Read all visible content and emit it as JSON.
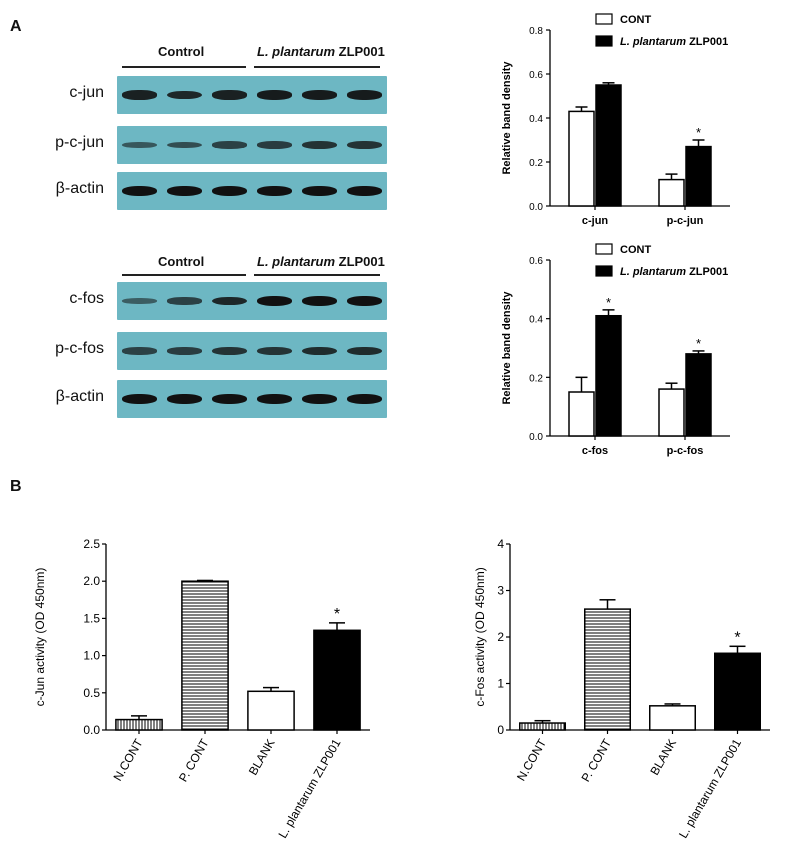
{
  "panels": {
    "a": "A",
    "b": "B"
  },
  "blot_top": {
    "control": "Control",
    "treat_italic": "L. plantarum",
    "treat_rest": " ZLP001",
    "rows": [
      {
        "label": "c-jun",
        "intensities": [
          0.85,
          0.8,
          0.85,
          0.9,
          0.9,
          0.9
        ]
      },
      {
        "label": "p-c-jun",
        "intensities": [
          0.35,
          0.45,
          0.55,
          0.6,
          0.7,
          0.7
        ]
      },
      {
        "label": "β-actin",
        "intensities": [
          1,
          1,
          1,
          1,
          1,
          1
        ]
      }
    ]
  },
  "blot_bottom": {
    "control": "Control",
    "treat_italic": "L. plantarum",
    "treat_rest": " ZLP001",
    "rows": [
      {
        "label": "c-fos",
        "intensities": [
          0.3,
          0.55,
          0.8,
          1,
          1,
          1
        ]
      },
      {
        "label": "p-c-fos",
        "intensities": [
          0.55,
          0.6,
          0.7,
          0.7,
          0.75,
          0.75
        ]
      },
      {
        "label": "β-actin",
        "intensities": [
          1,
          1,
          1,
          1,
          1,
          1
        ]
      }
    ]
  },
  "chart_data": [
    {
      "type": "bar",
      "ylabel": "Relative band density",
      "categories": [
        "c-jun",
        "p-c-jun"
      ],
      "ylim": [
        0,
        0.8
      ],
      "yticks": [
        "0.0",
        "0.2",
        "0.4",
        "0.6",
        "0.8"
      ],
      "series": [
        {
          "name": "CONT",
          "values": [
            0.43,
            0.12
          ],
          "errors": [
            0.02,
            0.025
          ],
          "fill": "#ffffff"
        },
        {
          "name": "L. plantarum ZLP001",
          "values": [
            0.55,
            0.27
          ],
          "errors": [
            0.01,
            0.03
          ],
          "fill": "#000000"
        }
      ],
      "legend": [
        {
          "italic": "",
          "rest": "CONT"
        },
        {
          "italic": "L. plantarum",
          "rest": " ZLP001"
        }
      ],
      "annotations": [
        {
          "category": 1,
          "series": 1,
          "text": "*"
        }
      ]
    },
    {
      "type": "bar",
      "ylabel": "Relative band density",
      "categories": [
        "c-fos",
        "p-c-fos"
      ],
      "ylim": [
        0,
        0.6
      ],
      "yticks": [
        "0.0",
        "0.2",
        "0.4",
        "0.6"
      ],
      "series": [
        {
          "name": "CONT",
          "values": [
            0.15,
            0.16
          ],
          "errors": [
            0.05,
            0.02
          ],
          "fill": "#ffffff"
        },
        {
          "name": "L. plantarum ZLP001",
          "values": [
            0.41,
            0.28
          ],
          "errors": [
            0.02,
            0.01
          ],
          "fill": "#000000"
        }
      ],
      "legend": [
        {
          "italic": "",
          "rest": "CONT"
        },
        {
          "italic": "L. plantarum",
          "rest": " ZLP001"
        }
      ],
      "annotations": [
        {
          "category": 0,
          "series": 1,
          "text": "*"
        },
        {
          "category": 1,
          "series": 1,
          "text": "*"
        }
      ]
    },
    {
      "type": "bar",
      "ylabel": "c-Jun activity (OD 450nm)",
      "categories": [
        "N.CONT",
        "P. CONT",
        "BLANK",
        "L. plantarum ZLP001"
      ],
      "values": [
        0.14,
        2.0,
        0.52,
        1.34
      ],
      "errors": [
        0.05,
        0.01,
        0.05,
        0.1
      ],
      "patterns": [
        "vstripe",
        "hstripe",
        "white",
        "black"
      ],
      "ylim": [
        0,
        2.5
      ],
      "yticks": [
        "0.0",
        "0.5",
        "1.0",
        "1.5",
        "2.0",
        "2.5"
      ],
      "annotations": [
        {
          "category": 3,
          "text": "*"
        }
      ]
    },
    {
      "type": "bar",
      "ylabel": "c-Fos activity  (OD 450nm)",
      "categories": [
        "N.CONT",
        "P. CONT",
        "BLANK",
        "L. plantarum ZLP001"
      ],
      "values": [
        0.15,
        2.6,
        0.52,
        1.65
      ],
      "errors": [
        0.05,
        0.2,
        0.04,
        0.15
      ],
      "patterns": [
        "vstripe",
        "hstripe",
        "white",
        "black"
      ],
      "ylim": [
        0,
        4
      ],
      "yticks": [
        "0",
        "1",
        "2",
        "3",
        "4"
      ],
      "annotations": [
        {
          "category": 3,
          "text": "*"
        }
      ]
    }
  ]
}
